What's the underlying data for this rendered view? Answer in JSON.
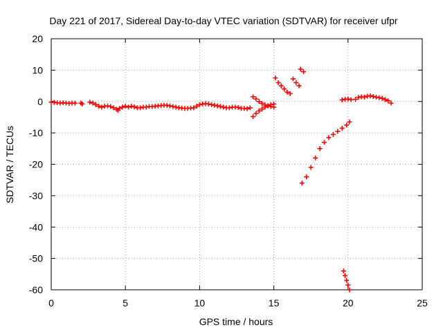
{
  "chart_data": {
    "type": "scatter",
    "title": "Day 221 of 2017, Sidereal Day-to-day VTEC variation (SDTVAR) for receiver ufpr",
    "xlabel": "GPS time / hours",
    "ylabel": "SDTVAR / TECUs",
    "xlim": [
      0,
      25
    ],
    "ylim": [
      -60,
      20
    ],
    "xticks": [
      "0",
      "5",
      "10",
      "15",
      "20",
      "25"
    ],
    "yticks": [
      "20",
      "10",
      "0",
      "-10",
      "-20",
      "-30",
      "-40",
      "-50",
      "-60"
    ],
    "grid": true,
    "marker": "plus",
    "color": "#ff0000",
    "series": [
      {
        "points": [
          [
            0.0,
            -0.2
          ],
          [
            0.2,
            -0.3
          ],
          [
            0.4,
            -0.4
          ],
          [
            0.6,
            -0.5
          ],
          [
            0.8,
            -0.4
          ],
          [
            1.0,
            -0.5
          ],
          [
            1.2,
            -0.6
          ],
          [
            1.4,
            -0.5
          ],
          [
            1.6,
            -0.5
          ],
          [
            2.0,
            -0.5
          ],
          [
            2.1,
            -0.8
          ],
          [
            2.6,
            -0.2
          ],
          [
            2.8,
            -0.5
          ],
          [
            3.0,
            -1.0
          ],
          [
            3.2,
            -1.5
          ],
          [
            3.4,
            -1.8
          ],
          [
            3.6,
            -1.5
          ],
          [
            3.8,
            -1.4
          ],
          [
            4.0,
            -1.6
          ],
          [
            4.2,
            -2.0
          ],
          [
            4.4,
            -2.5
          ],
          [
            4.5,
            -2.8
          ],
          [
            4.6,
            -2.2
          ],
          [
            4.8,
            -1.8
          ],
          [
            5.0,
            -1.5
          ],
          [
            5.2,
            -1.8
          ],
          [
            5.4,
            -1.5
          ],
          [
            5.6,
            -1.7
          ],
          [
            5.8,
            -2.0
          ],
          [
            6.0,
            -2.0
          ],
          [
            6.2,
            -1.8
          ],
          [
            6.4,
            -1.8
          ],
          [
            6.6,
            -1.6
          ],
          [
            6.8,
            -1.6
          ],
          [
            7.0,
            -1.5
          ],
          [
            7.2,
            -1.4
          ],
          [
            7.4,
            -1.3
          ],
          [
            7.6,
            -1.2
          ],
          [
            7.8,
            -1.2
          ],
          [
            8.0,
            -1.4
          ],
          [
            8.2,
            -1.6
          ],
          [
            8.4,
            -1.8
          ],
          [
            8.6,
            -2.0
          ],
          [
            8.8,
            -2.1
          ],
          [
            9.0,
            -2.2
          ],
          [
            9.2,
            -2.2
          ],
          [
            9.4,
            -2.1
          ],
          [
            9.6,
            -2.0
          ],
          [
            9.8,
            -1.5
          ],
          [
            10.0,
            -1.0
          ],
          [
            10.2,
            -0.8
          ],
          [
            10.4,
            -0.7
          ],
          [
            10.6,
            -0.8
          ],
          [
            10.8,
            -1.0
          ],
          [
            11.0,
            -1.2
          ],
          [
            11.2,
            -1.4
          ],
          [
            11.4,
            -1.6
          ],
          [
            11.6,
            -1.8
          ],
          [
            11.8,
            -2.0
          ],
          [
            12.0,
            -2.0
          ],
          [
            12.2,
            -1.8
          ],
          [
            12.4,
            -1.8
          ],
          [
            12.6,
            -1.9
          ],
          [
            12.8,
            -2.2
          ],
          [
            13.0,
            -2.2
          ],
          [
            13.2,
            -2.3
          ],
          [
            13.4,
            -2.0
          ]
        ]
      },
      {
        "points": [
          [
            13.6,
            1.5
          ],
          [
            13.8,
            0.8
          ],
          [
            14.0,
            0.0
          ],
          [
            14.2,
            -0.6
          ],
          [
            14.4,
            -1.1
          ],
          [
            14.6,
            -1.4
          ],
          [
            14.8,
            -1.6
          ],
          [
            15.0,
            -1.8
          ]
        ]
      },
      {
        "points": [
          [
            13.6,
            -4.8
          ],
          [
            13.8,
            -3.8
          ],
          [
            14.0,
            -3.0
          ],
          [
            14.2,
            -2.4
          ],
          [
            14.4,
            -1.8
          ],
          [
            14.6,
            -1.4
          ],
          [
            14.8,
            -1.0
          ],
          [
            15.0,
            -0.8
          ]
        ]
      },
      {
        "points": [
          [
            15.1,
            7.5
          ],
          [
            15.3,
            6.0
          ],
          [
            15.5,
            5.0
          ],
          [
            15.7,
            4.0
          ],
          [
            15.9,
            3.0
          ],
          [
            16.1,
            2.5
          ],
          [
            16.3,
            7.2
          ],
          [
            16.5,
            6.0
          ],
          [
            16.7,
            5.0
          ],
          [
            16.8,
            10.3
          ],
          [
            17.0,
            9.5
          ]
        ]
      },
      {
        "points": [
          [
            16.9,
            -26
          ],
          [
            17.2,
            -24
          ],
          [
            17.5,
            -21
          ],
          [
            17.8,
            -18
          ],
          [
            18.1,
            -15
          ],
          [
            18.4,
            -13
          ],
          [
            18.7,
            -11.5
          ],
          [
            19.0,
            -10.5
          ],
          [
            19.3,
            -9.5
          ],
          [
            19.6,
            -8.5
          ],
          [
            19.9,
            -7.5
          ],
          [
            20.1,
            -6.5
          ]
        ]
      },
      {
        "points": [
          [
            19.7,
            -54
          ],
          [
            19.8,
            -55.5
          ],
          [
            19.9,
            -57
          ],
          [
            20.0,
            -58.5
          ],
          [
            20.1,
            -60
          ]
        ]
      },
      {
        "points": [
          [
            19.6,
            0.5
          ],
          [
            19.8,
            0.7
          ],
          [
            20.0,
            0.8
          ],
          [
            20.2,
            0.6
          ],
          [
            20.5,
            0.7
          ],
          [
            20.7,
            1.3
          ],
          [
            20.9,
            1.5
          ],
          [
            21.1,
            1.4
          ],
          [
            21.3,
            1.7
          ],
          [
            21.5,
            1.8
          ],
          [
            21.7,
            1.6
          ],
          [
            21.9,
            1.4
          ],
          [
            22.1,
            1.2
          ],
          [
            22.3,
            1.0
          ],
          [
            22.5,
            0.6
          ],
          [
            22.7,
            0.2
          ],
          [
            22.9,
            -0.5
          ]
        ]
      }
    ]
  }
}
